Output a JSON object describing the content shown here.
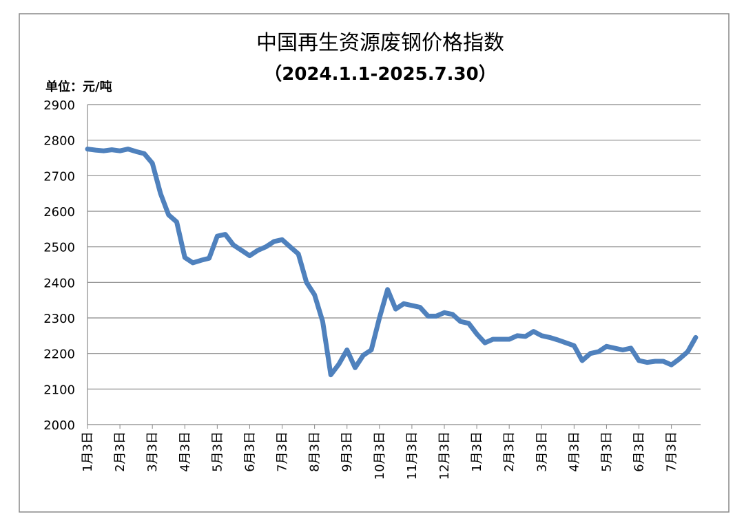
{
  "chart_data": {
    "type": "line",
    "title": "中国再生资源废钢价格指数",
    "subtitle": "（2024.1.1-2025.7.30）",
    "y_label": "单位：元/吨",
    "categories": [
      "1月3日",
      null,
      null,
      null,
      "2月3日",
      null,
      null,
      null,
      "3月3日",
      null,
      null,
      null,
      "4月3日",
      null,
      null,
      null,
      "5月3日",
      null,
      null,
      null,
      "6月3日",
      null,
      null,
      null,
      "7月3日",
      null,
      null,
      null,
      "8月3日",
      null,
      null,
      null,
      "9月3日",
      null,
      null,
      null,
      "10月3日",
      null,
      null,
      null,
      "11月3日",
      null,
      null,
      null,
      "12月3日",
      null,
      null,
      null,
      "1月3日",
      null,
      null,
      null,
      "2月3日",
      null,
      null,
      null,
      "3月3日",
      null,
      null,
      null,
      "4月3日",
      null,
      null,
      null,
      "5月3日",
      null,
      null,
      null,
      "6月3日",
      null,
      null,
      null,
      "7月3日",
      null,
      null,
      null
    ],
    "series": [
      {
        "name": "废钢价格指数",
        "color": "#4f81bd",
        "values": [
          2775,
          2772,
          2770,
          2773,
          2770,
          2775,
          2768,
          2762,
          2735,
          2650,
          2590,
          2570,
          2470,
          2455,
          2462,
          2468,
          2530,
          2535,
          2505,
          2490,
          2475,
          2490,
          2500,
          2515,
          2520,
          2500,
          2480,
          2400,
          2365,
          2290,
          2140,
          2170,
          2210,
          2160,
          2195,
          2210,
          2300,
          2380,
          2325,
          2340,
          2335,
          2330,
          2305,
          2305,
          2315,
          2310,
          2290,
          2285,
          2255,
          2230,
          2240,
          2240,
          2240,
          2250,
          2248,
          2262,
          2250,
          2245,
          2238,
          2230,
          2222,
          2180,
          2200,
          2205,
          2220,
          2215,
          2210,
          2215,
          2180,
          2175,
          2178,
          2178,
          2168,
          2185,
          2205,
          2245
        ]
      }
    ],
    "ylim": [
      2000,
      2900
    ],
    "yticks": [
      2000,
      2100,
      2200,
      2300,
      2400,
      2500,
      2600,
      2700,
      2800,
      2900
    ],
    "grid": true
  }
}
